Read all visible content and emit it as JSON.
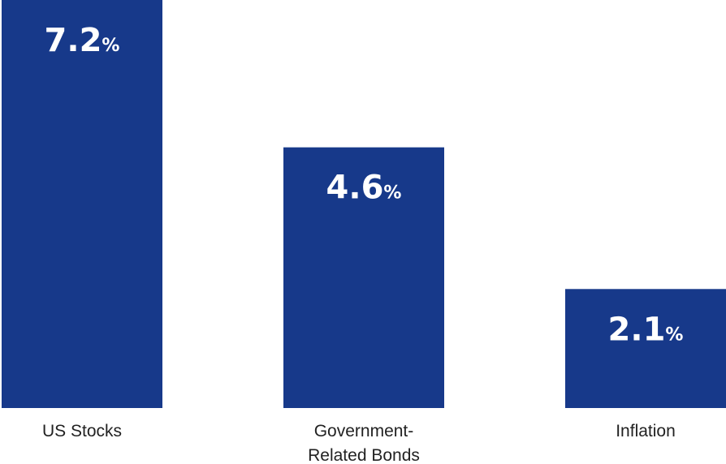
{
  "chart_data": {
    "type": "bar",
    "categories": [
      [
        "US Stocks"
      ],
      [
        "Government-",
        "Related Bonds"
      ],
      [
        "Inflation"
      ]
    ],
    "values": [
      7.2,
      4.6,
      2.1
    ],
    "value_labels": [
      "7.2",
      "4.6",
      "2.1"
    ],
    "value_suffix": "%",
    "ylim": [
      0,
      7.2
    ],
    "bar_color": "#17398a",
    "grid": false,
    "legend": "none"
  }
}
